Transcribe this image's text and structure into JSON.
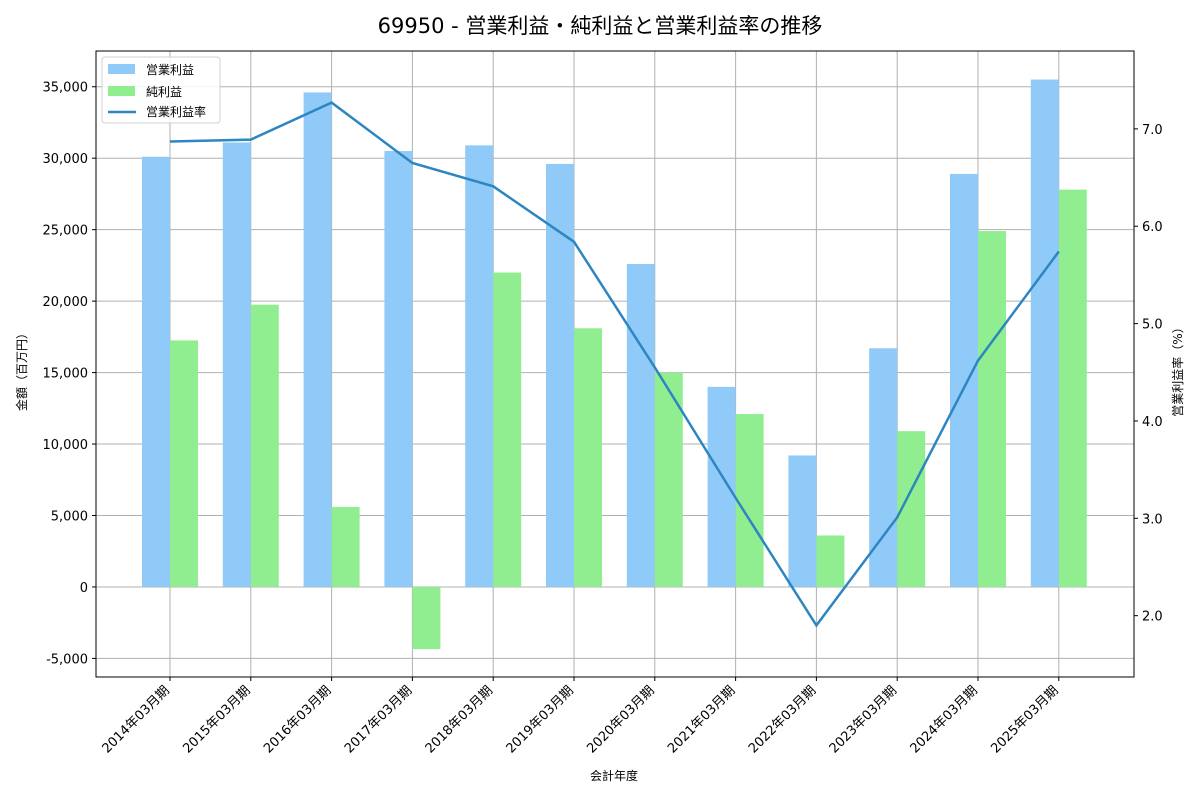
{
  "chart_data": {
    "type": "bar",
    "title": "69950 - 営業利益・純利益と営業利益率の推移",
    "xlabel": "会計年度",
    "ylabel": "金額（百万円）",
    "y2label": "営業利益率（%）",
    "categories": [
      "2014年03月期",
      "2015年03月期",
      "2016年03月期",
      "2017年03月期",
      "2018年03月期",
      "2019年03月期",
      "2020年03月期",
      "2021年03月期",
      "2022年03月期",
      "2023年03月期",
      "2024年03月期",
      "2025年03月期"
    ],
    "series": [
      {
        "name": "営業利益",
        "type": "bar",
        "axis": "left",
        "color": "#90caf9",
        "values": [
          30100,
          31100,
          34600,
          30500,
          30900,
          29600,
          22600,
          14000,
          9200,
          16700,
          28900,
          35500
        ]
      },
      {
        "name": "純利益",
        "type": "bar",
        "axis": "left",
        "color": "#90ee90",
        "values": [
          17250,
          19750,
          5600,
          -4350,
          22000,
          18100,
          15000,
          12100,
          3600,
          10900,
          24900,
          27800
        ]
      },
      {
        "name": "営業利益率",
        "type": "line",
        "axis": "right",
        "color": "#2e86c1",
        "values": [
          6.87,
          6.89,
          7.27,
          6.65,
          6.41,
          5.84,
          4.55,
          3.21,
          1.9,
          3.01,
          4.62,
          5.74
        ]
      }
    ],
    "ylim": [
      -6300,
      37500
    ],
    "y2lim": [
      1.37,
      7.8
    ],
    "yticks": [
      -5000,
      0,
      5000,
      10000,
      15000,
      20000,
      25000,
      30000,
      35000
    ],
    "ytick_labels": [
      "-5,000",
      "0",
      "5,000",
      "10,000",
      "15,000",
      "20,000",
      "25,000",
      "30,000",
      "35,000"
    ],
    "y2ticks": [
      2.0,
      3.0,
      4.0,
      5.0,
      6.0,
      7.0
    ],
    "y2tick_labels": [
      "2.0",
      "3.0",
      "4.0",
      "5.0",
      "6.0",
      "7.0"
    ],
    "grid": true,
    "legend_position": "upper left"
  }
}
